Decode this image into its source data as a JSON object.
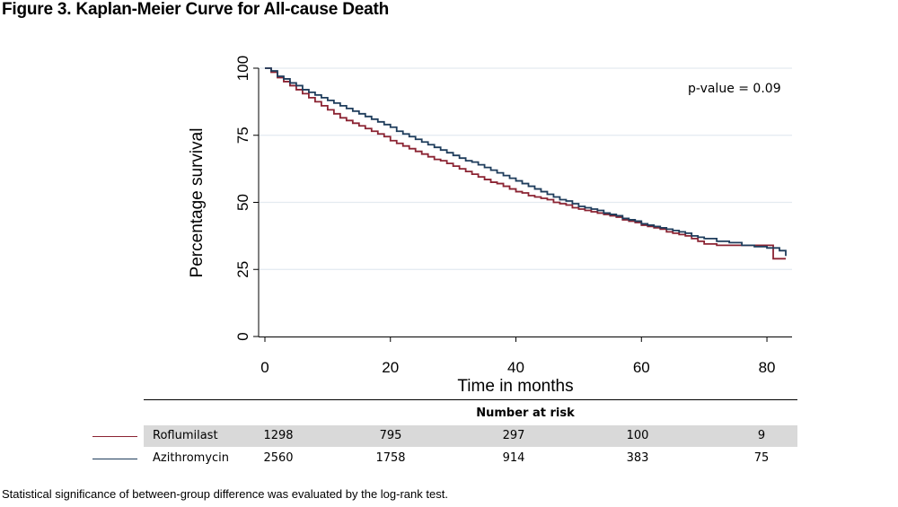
{
  "figure_title": "Figure 3. Kaplan-Meier Curve for All-cause Death",
  "footnote": "Statistical significance of between-group difference was evaluated by the log-rank test.",
  "chart_data": {
    "type": "line",
    "title": "",
    "xlabel": "Time in months",
    "ylabel": "Percentage survival",
    "xlim": [
      -1,
      84
    ],
    "ylim": [
      0,
      100
    ],
    "x_ticks": [
      0,
      20,
      40,
      60,
      80
    ],
    "y_ticks": [
      0,
      25,
      50,
      75,
      100
    ],
    "grid": "horizontal",
    "annotation": "p-value = 0.09",
    "series": [
      {
        "name": "Roflumilast",
        "color": "#8b2332",
        "step": true,
        "x": [
          0,
          1,
          2,
          3,
          4,
          5,
          6,
          7,
          8,
          9,
          10,
          11,
          12,
          13,
          14,
          15,
          16,
          17,
          18,
          19,
          20,
          21,
          22,
          23,
          24,
          25,
          26,
          27,
          28,
          29,
          30,
          31,
          32,
          33,
          34,
          35,
          36,
          37,
          38,
          39,
          40,
          41,
          42,
          43,
          44,
          45,
          46,
          47,
          48,
          49,
          50,
          51,
          52,
          53,
          54,
          55,
          56,
          57,
          58,
          59,
          60,
          61,
          62,
          63,
          64,
          65,
          66,
          67,
          68,
          69,
          70,
          72,
          74,
          76,
          78,
          80,
          81,
          83
        ],
        "y": [
          100,
          98.5,
          96.5,
          95,
          93.5,
          92,
          90.5,
          89,
          87.5,
          86,
          84.5,
          83,
          81.5,
          80.5,
          79.5,
          78.5,
          77.5,
          76.5,
          75.5,
          74.5,
          73,
          72,
          71,
          70,
          69,
          68,
          67,
          66,
          65.5,
          64.5,
          63.5,
          62.5,
          61.5,
          60.5,
          59.5,
          58.5,
          57.5,
          57,
          56,
          55,
          54,
          53.5,
          52.5,
          52,
          51.5,
          51,
          50,
          49.5,
          49,
          48,
          47.5,
          47,
          46.5,
          46,
          45.5,
          45,
          44.5,
          43.5,
          43,
          42.5,
          41.5,
          41,
          40.5,
          40,
          39,
          38.5,
          38,
          37.5,
          36.5,
          35.5,
          34.5,
          34,
          34,
          34,
          34,
          34,
          29,
          29
        ]
      },
      {
        "name": "Azithromycin",
        "color": "#1f3d5c",
        "step": true,
        "x": [
          0,
          1,
          2,
          3,
          4,
          5,
          6,
          7,
          8,
          9,
          10,
          11,
          12,
          13,
          14,
          15,
          16,
          17,
          18,
          19,
          20,
          21,
          22,
          23,
          24,
          25,
          26,
          27,
          28,
          29,
          30,
          31,
          32,
          33,
          34,
          35,
          36,
          37,
          38,
          39,
          40,
          41,
          42,
          43,
          44,
          45,
          46,
          47,
          48,
          49,
          50,
          51,
          52,
          53,
          54,
          55,
          56,
          57,
          58,
          59,
          60,
          61,
          62,
          63,
          64,
          65,
          66,
          67,
          68,
          69,
          70,
          72,
          74,
          76,
          78,
          80,
          82,
          83
        ],
        "y": [
          100,
          99,
          97,
          96,
          94.5,
          93.5,
          92,
          91,
          90,
          89,
          88,
          87,
          86,
          85,
          84,
          83,
          82,
          81,
          80,
          79,
          78,
          76.5,
          75.5,
          74.5,
          73.5,
          72.5,
          71.5,
          70.5,
          69.5,
          68.5,
          67.5,
          66.5,
          65.5,
          65,
          64,
          63,
          62,
          61,
          60,
          59,
          58,
          57,
          56,
          55,
          54,
          53,
          52,
          51,
          50.5,
          49.5,
          48.5,
          48,
          47.5,
          47,
          46,
          45.5,
          45,
          44,
          43.5,
          43,
          42,
          41.5,
          41,
          40.5,
          40,
          39.5,
          39,
          38.5,
          37.5,
          37,
          36.5,
          35.5,
          35,
          34,
          33.5,
          33,
          32,
          30
        ]
      }
    ]
  },
  "risk_table": {
    "title": "Number at risk",
    "times": [
      0,
      20,
      40,
      60,
      80
    ],
    "rows": [
      {
        "name": "Roflumilast",
        "values": [
          "1298",
          "795",
          "297",
          "100",
          "9"
        ]
      },
      {
        "name": "Azithromycin",
        "values": [
          "2560",
          "1758",
          "914",
          "383",
          "75"
        ]
      }
    ]
  }
}
